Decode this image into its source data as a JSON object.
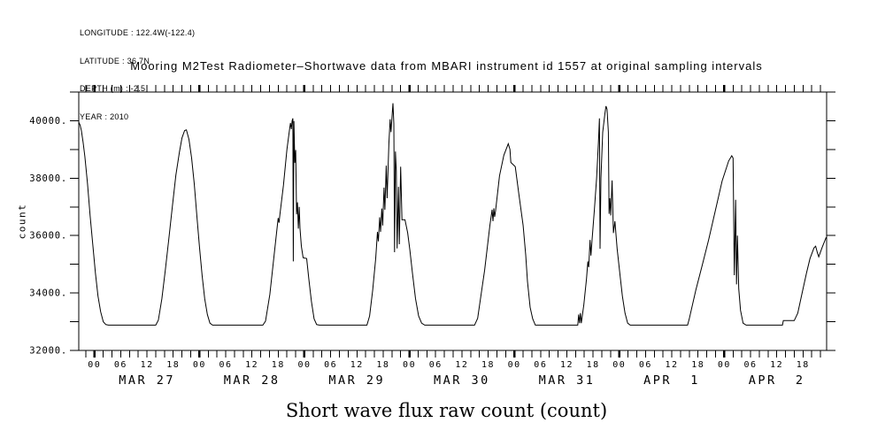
{
  "header": {
    "lines": [
      "LONGITUDE : 122.4W(-122.4)",
      "LATITUDE : 36.7N",
      "DEPTH (m) : -2.5",
      "YEAR : 2010"
    ]
  },
  "colors": {
    "line": "#000000",
    "text": "#000000",
    "background": "#ffffff"
  },
  "chart_data": {
    "type": "line",
    "title": "Mooring M2Test Radiometer–Shortwave data from MBARI instrument id 1557 at original sampling intervals",
    "xlabel": "Short wave flux raw count (count)",
    "ylabel": "count",
    "ylim": [
      32000,
      41000
    ],
    "y_tick_step": 1000,
    "y_labeled_ticks": [
      32000,
      34000,
      36000,
      38000,
      40000
    ],
    "y_label_suffix": ".",
    "x_unit": "hours relative to MAR 27 00:00 (2010)",
    "xlim": [
      -3.6,
      167.4
    ],
    "x_minor_tick_step": 2,
    "x_hour_label_step": 6,
    "x_hour_labels_cycle": [
      "00",
      "06",
      "12",
      "18"
    ],
    "x_day_tick_step": 24,
    "day_labels": [
      {
        "t": 12,
        "label": "MAR 27"
      },
      {
        "t": 36,
        "label": "MAR 28"
      },
      {
        "t": 60,
        "label": "MAR 29"
      },
      {
        "t": 84,
        "label": "MAR 30"
      },
      {
        "t": 108,
        "label": "MAR 31"
      },
      {
        "t": 132,
        "label": "APR  1"
      },
      {
        "t": 156,
        "label": "APR  2"
      }
    ],
    "grid": false,
    "legend": null,
    "night_floor_value": 32880,
    "series": [
      {
        "name": "Short wave flux raw count",
        "points": [
          [
            -3.6,
            39950
          ],
          [
            -3.3,
            39850
          ],
          [
            -3.0,
            39650
          ],
          [
            -2.6,
            39250
          ],
          [
            -2.2,
            38750
          ],
          [
            -1.6,
            37800
          ],
          [
            -1.0,
            36700
          ],
          [
            -0.4,
            35700
          ],
          [
            0.2,
            34700
          ],
          [
            0.8,
            33900
          ],
          [
            1.4,
            33350
          ],
          [
            2.0,
            33000
          ],
          [
            2.6,
            32900
          ],
          [
            3.2,
            32880
          ],
          [
            14.0,
            32880
          ],
          [
            14.6,
            33050
          ],
          [
            15.4,
            33800
          ],
          [
            16.2,
            34800
          ],
          [
            17.0,
            35900
          ],
          [
            17.8,
            37000
          ],
          [
            18.6,
            38100
          ],
          [
            19.4,
            38900
          ],
          [
            20.0,
            39400
          ],
          [
            20.6,
            39660
          ],
          [
            21.0,
            39680
          ],
          [
            21.6,
            39350
          ],
          [
            22.2,
            38700
          ],
          [
            22.8,
            37800
          ],
          [
            23.4,
            36700
          ],
          [
            24.0,
            35600
          ],
          [
            24.6,
            34600
          ],
          [
            25.2,
            33800
          ],
          [
            25.8,
            33250
          ],
          [
            26.4,
            32950
          ],
          [
            27.0,
            32880
          ],
          [
            38.5,
            32880
          ],
          [
            39.1,
            33020
          ],
          [
            40.1,
            33950
          ],
          [
            41.1,
            35370
          ],
          [
            42.0,
            36610
          ],
          [
            42.2,
            36450
          ],
          [
            42.4,
            36740
          ],
          [
            43.2,
            37760
          ],
          [
            44.0,
            39000
          ],
          [
            44.6,
            39710
          ],
          [
            44.8,
            39920
          ],
          [
            45.0,
            39710
          ],
          [
            45.2,
            40000
          ],
          [
            45.35,
            40080
          ],
          [
            45.45,
            35100
          ],
          [
            45.6,
            39990
          ],
          [
            45.8,
            38530
          ],
          [
            46.0,
            38980
          ],
          [
            46.2,
            36740
          ],
          [
            46.4,
            37160
          ],
          [
            46.6,
            36240
          ],
          [
            46.8,
            37000
          ],
          [
            47.0,
            36240
          ],
          [
            47.3,
            35630
          ],
          [
            47.7,
            35230
          ],
          [
            48.5,
            35200
          ],
          [
            49.0,
            34500
          ],
          [
            49.6,
            33700
          ],
          [
            50.2,
            33100
          ],
          [
            50.8,
            32900
          ],
          [
            51.4,
            32880
          ],
          [
            62.3,
            32880
          ],
          [
            62.9,
            33200
          ],
          [
            63.6,
            34100
          ],
          [
            64.3,
            35200
          ],
          [
            64.7,
            36130
          ],
          [
            64.9,
            35800
          ],
          [
            65.2,
            36640
          ],
          [
            65.4,
            36130
          ],
          [
            65.7,
            36940
          ],
          [
            65.9,
            36350
          ],
          [
            66.2,
            37670
          ],
          [
            66.4,
            36900
          ],
          [
            66.7,
            38440
          ],
          [
            66.9,
            37300
          ],
          [
            67.3,
            39200
          ],
          [
            67.6,
            40050
          ],
          [
            67.8,
            39600
          ],
          [
            68.1,
            40300
          ],
          [
            68.25,
            40610
          ],
          [
            68.45,
            39900
          ],
          [
            68.6,
            35420
          ],
          [
            68.8,
            38930
          ],
          [
            69.0,
            38250
          ],
          [
            69.2,
            35550
          ],
          [
            69.5,
            37700
          ],
          [
            69.7,
            35700
          ],
          [
            70.0,
            38400
          ],
          [
            70.3,
            36550
          ],
          [
            71.0,
            36550
          ],
          [
            71.6,
            36100
          ],
          [
            72.1,
            35500
          ],
          [
            72.7,
            34700
          ],
          [
            73.4,
            33800
          ],
          [
            74.1,
            33200
          ],
          [
            74.8,
            32950
          ],
          [
            75.5,
            32880
          ],
          [
            86.9,
            32880
          ],
          [
            87.6,
            33120
          ],
          [
            88.4,
            33950
          ],
          [
            89.2,
            34800
          ],
          [
            90.4,
            36350
          ],
          [
            90.9,
            36900
          ],
          [
            91.1,
            36500
          ],
          [
            91.3,
            36950
          ],
          [
            91.5,
            36650
          ],
          [
            91.7,
            36850
          ],
          [
            92.6,
            38080
          ],
          [
            93.6,
            38800
          ],
          [
            94.6,
            39200
          ],
          [
            95.0,
            39000
          ],
          [
            95.2,
            38550
          ],
          [
            96.2,
            38400
          ],
          [
            97.0,
            37480
          ],
          [
            98.0,
            36350
          ],
          [
            98.6,
            35330
          ],
          [
            99.0,
            34400
          ],
          [
            99.6,
            33500
          ],
          [
            100.2,
            33100
          ],
          [
            100.8,
            32880
          ],
          [
            110.5,
            32880
          ],
          [
            110.7,
            33250
          ],
          [
            110.9,
            32950
          ],
          [
            111.1,
            33300
          ],
          [
            111.3,
            32950
          ],
          [
            111.9,
            33600
          ],
          [
            112.5,
            34500
          ],
          [
            112.8,
            35100
          ],
          [
            113.0,
            34900
          ],
          [
            113.3,
            35850
          ],
          [
            113.5,
            35300
          ],
          [
            113.8,
            35900
          ],
          [
            114.3,
            36900
          ],
          [
            114.8,
            38000
          ],
          [
            115.2,
            39200
          ],
          [
            115.45,
            40080
          ],
          [
            115.6,
            35540
          ],
          [
            115.8,
            38000
          ],
          [
            116.2,
            39600
          ],
          [
            116.7,
            40250
          ],
          [
            116.95,
            40510
          ],
          [
            117.2,
            40400
          ],
          [
            117.5,
            39600
          ],
          [
            117.65,
            36760
          ],
          [
            117.85,
            37300
          ],
          [
            118.05,
            36700
          ],
          [
            118.35,
            37920
          ],
          [
            118.65,
            36090
          ],
          [
            119.0,
            36500
          ],
          [
            119.5,
            35540
          ],
          [
            120.1,
            34700
          ],
          [
            120.7,
            33900
          ],
          [
            121.3,
            33300
          ],
          [
            121.9,
            32950
          ],
          [
            122.5,
            32880
          ],
          [
            135.6,
            32880
          ],
          [
            136.0,
            33100
          ],
          [
            137.5,
            34100
          ],
          [
            139.0,
            35000
          ],
          [
            140.4,
            35840
          ],
          [
            142.0,
            36900
          ],
          [
            143.5,
            37900
          ],
          [
            145.0,
            38600
          ],
          [
            145.7,
            38780
          ],
          [
            146.0,
            38700
          ],
          [
            146.3,
            34620
          ],
          [
            146.6,
            37250
          ],
          [
            146.8,
            34300
          ],
          [
            147.0,
            36000
          ],
          [
            147.3,
            34150
          ],
          [
            147.7,
            33400
          ],
          [
            148.3,
            32950
          ],
          [
            149.0,
            32880
          ],
          [
            157.3,
            32880
          ],
          [
            157.5,
            33040
          ],
          [
            160.0,
            33040
          ],
          [
            160.8,
            33300
          ],
          [
            161.8,
            34000
          ],
          [
            162.8,
            34700
          ],
          [
            163.6,
            35200
          ],
          [
            164.5,
            35570
          ],
          [
            164.9,
            35630
          ],
          [
            165.3,
            35400
          ],
          [
            165.6,
            35260
          ],
          [
            166.4,
            35600
          ],
          [
            167.3,
            35940
          ]
        ]
      }
    ]
  }
}
